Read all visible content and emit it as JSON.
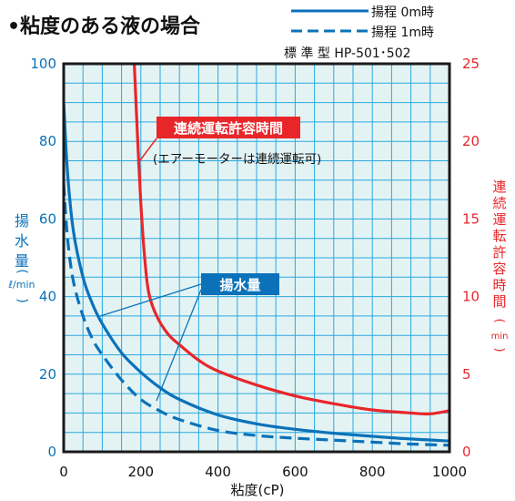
{
  "chart_data": {
    "type": "line",
    "title": "•粘度のある液の場合",
    "model_label": "標 準 型 HP-501･502",
    "legend": [
      {
        "label": "揚程 0m時",
        "style": "solid"
      },
      {
        "label": "揚程 1m時",
        "style": "dashed"
      }
    ],
    "xlabel": "粘度(cP)",
    "ylabel_left": [
      "揚",
      "水",
      "量",
      "ℓ/min"
    ],
    "ylabel_right": [
      "連",
      "続",
      "運",
      "転",
      "許",
      "容",
      "時",
      "間",
      "min"
    ],
    "xlim": [
      0,
      1000
    ],
    "ylim_left": [
      0,
      100
    ],
    "ylim_right": [
      0,
      25
    ],
    "x_ticks": [
      0,
      200,
      400,
      600,
      800,
      1000
    ],
    "y_left_ticks": [
      0,
      20,
      40,
      60,
      80,
      100
    ],
    "y_right_ticks": [
      0,
      5,
      10,
      15,
      20,
      25
    ],
    "grid": true,
    "colors": {
      "flow": "#0b72b9",
      "time": "#e8262a",
      "grid": "#2aa8df",
      "bg": "#e3f3f4"
    },
    "series": [
      {
        "name": "揚水量 揚程0m時",
        "axis": "left",
        "color": "#0b72b9",
        "dash": false,
        "x": [
          0,
          10,
          25,
          50,
          75,
          100,
          150,
          200,
          250,
          300,
          400,
          500,
          600,
          700,
          800,
          900,
          1000
        ],
        "y": [
          90,
          72,
          57,
          45,
          38,
          33,
          25.5,
          20.5,
          16.5,
          13.5,
          9.5,
          7.2,
          5.8,
          4.8,
          4.0,
          3.3,
          2.8
        ]
      },
      {
        "name": "揚水量 揚程1m時",
        "axis": "left",
        "color": "#0b72b9",
        "dash": true,
        "x": [
          0,
          10,
          25,
          50,
          75,
          100,
          150,
          200,
          250,
          300,
          400,
          500,
          600,
          700,
          800,
          900,
          1000
        ],
        "y": [
          69,
          55,
          44,
          35,
          29,
          25,
          18.5,
          13.5,
          10.5,
          8.3,
          5.5,
          4.2,
          3.5,
          3.0,
          2.5,
          2.0,
          1.7
        ]
      },
      {
        "name": "連続運転許容時間",
        "axis": "right",
        "color": "#e8262a",
        "dash": false,
        "x": [
          183,
          190,
          200,
          210,
          220,
          240,
          270,
          300,
          350,
          400,
          500,
          600,
          700,
          800,
          900,
          950,
          1000
        ],
        "y": [
          25,
          21,
          16,
          12.5,
          10.3,
          8.8,
          7.6,
          6.9,
          5.9,
          5.2,
          4.3,
          3.6,
          3.1,
          2.7,
          2.5,
          2.45,
          2.65
        ]
      }
    ],
    "annotations": {
      "time_label": "連続運転許容時間",
      "time_note": "(エアーモーターは連続運転可)",
      "flow_label": "揚水量"
    }
  }
}
